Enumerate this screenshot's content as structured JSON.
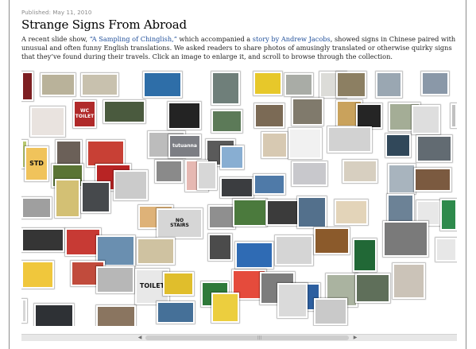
{
  "article": {
    "published": "Published: May 11, 2010",
    "title": "Strange Signs From Abroad",
    "intro": {
      "part1": "A recent slide show, ",
      "link1": "“A Sampling of Chinglish,”",
      "part2": " which accompanied a ",
      "link2": "story by Andrew Jacobs",
      "part3": ", showed signs in Chinese paired with unusual and often funny English translations. We asked readers to share photos of amusingly translated or otherwise quirky signs that they’ve found during their travels. Click an image to enlarge it, and scroll to browse through the collection."
    }
  },
  "collage": {
    "photos": [
      {
        "bg": "#7d1f22",
        "fg": "#f0e6d8",
        "text": ""
      },
      {
        "bg": "#b9b29a",
        "fg": "#ffffff",
        "text": ""
      },
      {
        "bg": "#c8c1ae",
        "fg": "#7a5a2a",
        "text": ""
      },
      {
        "bg": "#2e6ea8",
        "fg": "#ffffff",
        "text": ""
      },
      {
        "bg": "#6f7f7a",
        "fg": "#ffffff",
        "text": ""
      },
      {
        "bg": "#e7c82a",
        "fg": "#222222",
        "text": ""
      },
      {
        "bg": "#a9aca6",
        "fg": "#222222",
        "text": ""
      },
      {
        "bg": "#dcdcd8",
        "fg": "#111111",
        "text": ""
      },
      {
        "bg": "#8c7f62",
        "fg": "#ffffff",
        "text": ""
      },
      {
        "bg": "#9aa7b2",
        "fg": "#ffffff",
        "text": ""
      },
      {
        "bg": "#8a98a8",
        "fg": "#ffffff",
        "text": ""
      },
      {
        "bg": "#e9e3df",
        "fg": "#c02020",
        "text": ""
      },
      {
        "bg": "#b02a2a",
        "fg": "#ffffff",
        "text": "WC\nTOILET"
      },
      {
        "bg": "#4a5a3e",
        "fg": "#ffffff",
        "text": ""
      },
      {
        "bg": "#232323",
        "fg": "#ffffff",
        "text": ""
      },
      {
        "bg": "#5c7a58",
        "fg": "#ffffff",
        "text": ""
      },
      {
        "bg": "#7b6a55",
        "fg": "#ffffff",
        "text": ""
      },
      {
        "bg": "#807a6c",
        "fg": "#ffffff",
        "text": ""
      },
      {
        "bg": "#c9a25c",
        "fg": "#ffffff",
        "text": ""
      },
      {
        "bg": "#252525",
        "fg": "#ffffff",
        "text": ""
      },
      {
        "bg": "#a4ad96",
        "fg": "#ffffff",
        "text": ""
      },
      {
        "bg": "#dedede",
        "fg": "#333333",
        "text": ""
      },
      {
        "bg": "#c0c0c0",
        "fg": "#222222",
        "text": ""
      },
      {
        "bg": "#b8c86f",
        "fg": "#333333",
        "text": ""
      },
      {
        "bg": "#6b6058",
        "fg": "#ffffff",
        "text": ""
      },
      {
        "bg": "#c84035",
        "fg": "#ffffff",
        "text": ""
      },
      {
        "bg": "#bcbcbc",
        "fg": "#333333",
        "text": ""
      },
      {
        "bg": "#7c7e84",
        "fg": "#ffffff",
        "text": "tutuanna"
      },
      {
        "bg": "#5a5a5a",
        "fg": "#ffffff",
        "text": ""
      },
      {
        "bg": "#88aed2",
        "fg": "#ffffff",
        "text": ""
      },
      {
        "bg": "#d7c9b2",
        "fg": "#333333",
        "text": ""
      },
      {
        "bg": "#f1f1f1",
        "fg": "#c01818",
        "text": ""
      },
      {
        "bg": "#d2d2d2",
        "fg": "#111111",
        "text": ""
      },
      {
        "bg": "#31485a",
        "fg": "#ffffff",
        "text": ""
      },
      {
        "bg": "#626b72",
        "fg": "#ffffff",
        "text": ""
      },
      {
        "bg": "#f0c35b",
        "fg": "#111111",
        "text": "STD"
      },
      {
        "bg": "#5a7434",
        "fg": "#ffffff",
        "text": ""
      },
      {
        "bg": "#b82424",
        "fg": "#ffffff",
        "text": ""
      },
      {
        "bg": "#8a8a8a",
        "fg": "#ffffff",
        "text": ""
      },
      {
        "bg": "#e6b8b2",
        "fg": "#c02020",
        "text": ""
      },
      {
        "bg": "#d7d7d7",
        "fg": "#c01010",
        "text": ""
      },
      {
        "bg": "#3b3d40",
        "fg": "#ffffff",
        "text": ""
      },
      {
        "bg": "#4f7aa8",
        "fg": "#ffffff",
        "text": ""
      },
      {
        "bg": "#c8c8cc",
        "fg": "#333333",
        "text": ""
      },
      {
        "bg": "#d7cfc0",
        "fg": "#333333",
        "text": ""
      },
      {
        "bg": "#a8b4be",
        "fg": "#ffffff",
        "text": ""
      },
      {
        "bg": "#7b5a40",
        "fg": "#ffffff",
        "text": ""
      },
      {
        "bg": "#9f9f9f",
        "fg": "#ffffff",
        "text": ""
      },
      {
        "bg": "#d3c074",
        "fg": "#222222",
        "text": ""
      },
      {
        "bg": "#46494c",
        "fg": "#ffffff",
        "text": ""
      },
      {
        "bg": "#cbcbcb",
        "fg": "#222222",
        "text": ""
      },
      {
        "bg": "#deb278",
        "fg": "#333333",
        "text": ""
      },
      {
        "bg": "#d6d6d6",
        "fg": "#111111",
        "text": "NO\nSTAIRS"
      },
      {
        "bg": "#8f8f8f",
        "fg": "#ffffff",
        "text": ""
      },
      {
        "bg": "#4b7a3d",
        "fg": "#ffffff",
        "text": ""
      },
      {
        "bg": "#3b3b3b",
        "fg": "#ffffff",
        "text": ""
      },
      {
        "bg": "#53708c",
        "fg": "#ffffff",
        "text": ""
      },
      {
        "bg": "#e3d4b9",
        "fg": "#333333",
        "text": ""
      },
      {
        "bg": "#6c8296",
        "fg": "#ffffff",
        "text": ""
      },
      {
        "bg": "#e8e8e8",
        "fg": "#1e1e1e",
        "text": ""
      },
      {
        "bg": "#2e8a4c",
        "fg": "#ffffff",
        "text": ""
      },
      {
        "bg": "#353535",
        "fg": "#ffffff",
        "text": ""
      },
      {
        "bg": "#c73a34",
        "fg": "#ffffff",
        "text": ""
      },
      {
        "bg": "#6a8fb0",
        "fg": "#ffffff",
        "text": ""
      },
      {
        "bg": "#cfc2a1",
        "fg": "#333333",
        "text": ""
      },
      {
        "bg": "#4b4b4b",
        "fg": "#ffffff",
        "text": ""
      },
      {
        "bg": "#2f6bb4",
        "fg": "#ffffff",
        "text": ""
      },
      {
        "bg": "#d5d5d5",
        "fg": "#111111",
        "text": ""
      },
      {
        "bg": "#8b5a2b",
        "fg": "#ffffff",
        "text": ""
      },
      {
        "bg": "#216836",
        "fg": "#ffffff",
        "text": ""
      },
      {
        "bg": "#7a7a7a",
        "fg": "#ffffff",
        "text": ""
      },
      {
        "bg": "#e7e7e7",
        "fg": "#d01818",
        "text": ""
      },
      {
        "bg": "#f0c73c",
        "fg": "#111111",
        "text": ""
      },
      {
        "bg": "#c14b3c",
        "fg": "#ffffff",
        "text": ""
      },
      {
        "bg": "#b7b7b7",
        "fg": "#222222",
        "text": ""
      },
      {
        "bg": "#e8e8e8",
        "fg": "#111111",
        "text": "TOILET"
      },
      {
        "bg": "#e0be2c",
        "fg": "#111111",
        "text": ""
      },
      {
        "bg": "#2f7a3a",
        "fg": "#ffffff",
        "text": ""
      },
      {
        "bg": "#e54b3c",
        "fg": "#ffffff",
        "text": ""
      },
      {
        "bg": "#7d7d7d",
        "fg": "#ffffff",
        "text": ""
      },
      {
        "bg": "#2d5fa0",
        "fg": "#ffffff",
        "text": ""
      },
      {
        "bg": "#aab3a0",
        "fg": "#333333",
        "text": ""
      },
      {
        "bg": "#5f6f5a",
        "fg": "#ffffff",
        "text": ""
      },
      {
        "bg": "#cbc3b8",
        "fg": "#333333",
        "text": ""
      },
      {
        "bg": "#d7d7d7",
        "fg": "#111111",
        "text": ""
      },
      {
        "bg": "#2e3135",
        "fg": "#ffffff",
        "text": ""
      },
      {
        "bg": "#8a7560",
        "fg": "#ffffff",
        "text": ""
      },
      {
        "bg": "#457098",
        "fg": "#ffffff",
        "text": ""
      },
      {
        "bg": "#ecce3e",
        "fg": "#111111",
        "text": ""
      },
      {
        "bg": "#dadada",
        "fg": "#111111",
        "text": ""
      },
      {
        "bg": "#c9c9c9",
        "fg": "#222222",
        "text": ""
      }
    ]
  },
  "scrollbar": {
    "left_arrow_icon": "◀",
    "right_arrow_icon": "▶",
    "grip_icon": "|||",
    "position": 0.47
  }
}
